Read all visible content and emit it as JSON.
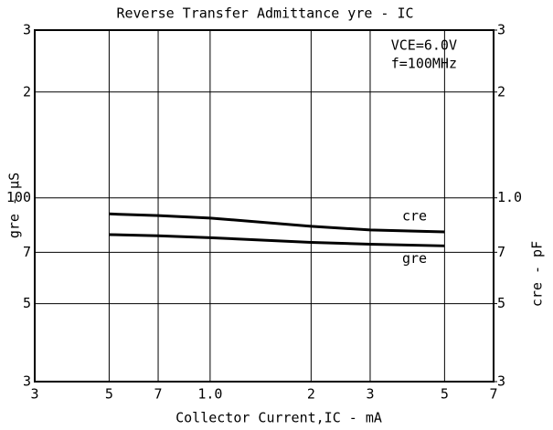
{
  "chart_data": {
    "type": "line",
    "title": "Reverse Transfer Admittance yre - IC",
    "xlabel": "Collector Current,IC - mA",
    "ylabel": "gre - µS",
    "y2label": "cre - pF",
    "annotations": [
      "VCE=6.0V",
      "f=100MHz"
    ],
    "xscale": "log",
    "yscale": "log",
    "y2scale": "log",
    "grid": true,
    "xlim": [
      0.3,
      7
    ],
    "xticks": [
      {
        "value": 0.3,
        "label": "3"
      },
      {
        "value": 0.5,
        "label": "5"
      },
      {
        "value": 0.7,
        "label": "7"
      },
      {
        "value": 1,
        "label": "1.0"
      },
      2,
      3,
      5,
      7
    ],
    "ylim": [
      30,
      300
    ],
    "yticks": [
      {
        "value": 300,
        "label": "3"
      },
      {
        "value": 200,
        "label": "2"
      },
      100,
      {
        "value": 70,
        "label": "7"
      },
      {
        "value": 50,
        "label": "5"
      },
      {
        "value": 30,
        "label": "3"
      }
    ],
    "y2lim": [
      0.3,
      3
    ],
    "y2ticks": [
      3,
      2,
      {
        "value": 1,
        "label": "1.0"
      },
      {
        "value": 0.7,
        "label": "7"
      },
      {
        "value": 0.5,
        "label": "5"
      },
      {
        "value": 0.3,
        "label": "3"
      }
    ],
    "x": [
      0.5,
      0.7,
      1,
      2,
      3,
      5
    ],
    "series": [
      {
        "name": "cre",
        "color": "#000000",
        "axis": "y2",
        "values": [
          0.9,
          0.89,
          0.876,
          0.83,
          0.81,
          0.8
        ]
      },
      {
        "name": "gre",
        "color": "#000000",
        "values": [
          78.6,
          78,
          77,
          74.7,
          73.8,
          73
        ]
      }
    ]
  }
}
